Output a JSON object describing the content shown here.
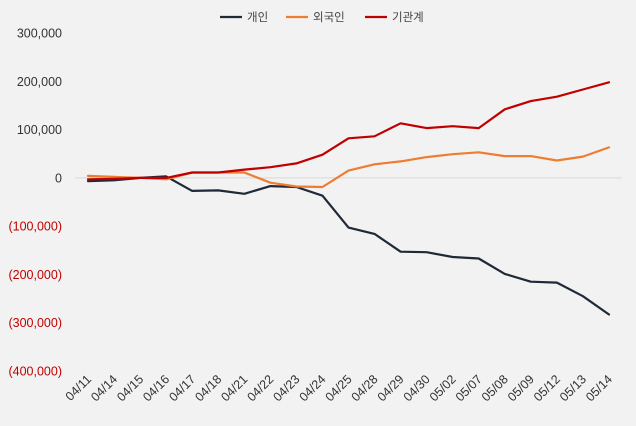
{
  "chart_data": {
    "type": "line",
    "title": "",
    "xlabel": "",
    "ylabel": "",
    "ylim": [
      -400000,
      300000
    ],
    "yticks": [
      300000,
      200000,
      100000,
      0,
      -100000,
      -200000,
      -300000,
      -400000
    ],
    "ytick_labels": [
      "300,000",
      "200,000",
      "100,000",
      "0",
      "(100,000)",
      "(200,000)",
      "(300,000)",
      "(400,000)"
    ],
    "categories": [
      "04/11",
      "04/14",
      "04/15",
      "04/16",
      "04/17",
      "04/18",
      "04/21",
      "04/22",
      "04/23",
      "04/24",
      "04/25",
      "04/28",
      "04/29",
      "04/30",
      "05/02",
      "05/07",
      "05/08",
      "05/09",
      "05/12",
      "05/13",
      "05/14"
    ],
    "series": [
      {
        "name": "개인",
        "color": "#1f2937",
        "values": [
          -7000,
          -5000,
          0,
          3000,
          -27000,
          -26000,
          -33000,
          -17000,
          -19000,
          -37000,
          -103000,
          -116000,
          -153000,
          -154000,
          -164000,
          -167000,
          -199000,
          -215000,
          -217000,
          -245000,
          -283000
        ]
      },
      {
        "name": "외국인",
        "color": "#ed7d31",
        "values": [
          4000,
          2000,
          0,
          -3000,
          11000,
          11000,
          11000,
          -10000,
          -18000,
          -19000,
          15000,
          28000,
          34000,
          43000,
          49000,
          53000,
          45000,
          45000,
          36000,
          44000,
          63000
        ]
      },
      {
        "name": "기관계",
        "color": "#c00000",
        "values": [
          -3000,
          -2000,
          0,
          0,
          11000,
          11000,
          17000,
          22000,
          30000,
          48000,
          82000,
          86000,
          113000,
          103000,
          107000,
          103000,
          142000,
          159000,
          168000,
          183000,
          198000
        ]
      }
    ],
    "legend_position": "top-center",
    "negative_label_color": "#c00000",
    "positive_label_color": "#333333",
    "grid": false
  }
}
